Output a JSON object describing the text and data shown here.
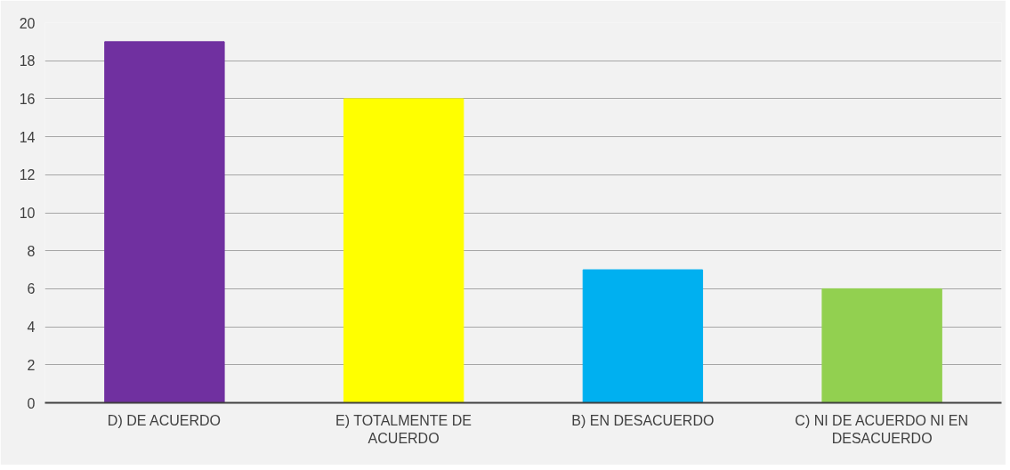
{
  "chart_data": {
    "type": "bar",
    "categories": [
      "D) DE ACUERDO",
      "E) TOTALMENTE DE ACUERDO",
      "B) EN DESACUERDO",
      "C) NI DE ACUERDO NI EN DESACUERDO"
    ],
    "values": [
      19,
      16,
      7,
      6
    ],
    "colors": [
      "#7030a0",
      "#ffff00",
      "#00b0f0",
      "#92d050"
    ],
    "ylim": [
      0,
      20
    ],
    "yticks": [
      0,
      2,
      4,
      6,
      8,
      10,
      12,
      14,
      16,
      18,
      20
    ],
    "grid": "y"
  }
}
